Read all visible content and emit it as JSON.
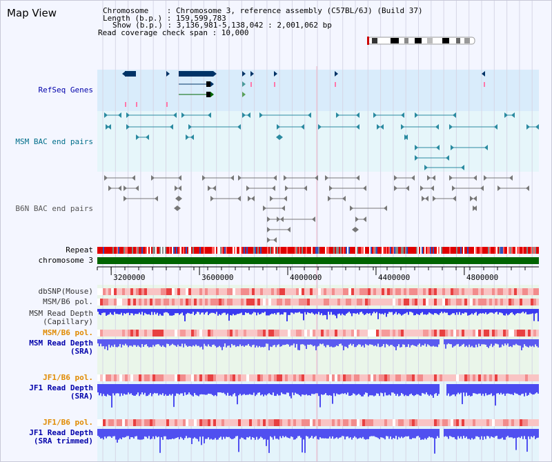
{
  "title": "Map View",
  "header": {
    "chromosome_line": "Chromosome    : Chromosome 3, reference assembly (C57BL/6J) (Build 37)",
    "length_line": "Length (b.p.) : 159,599,783",
    "show_line": "Show (b.p.) : 3,136,981-5,138,042 : 2,001,062 bp",
    "coverage_line": "Read coverage check span : 10,000"
  },
  "labels": {
    "refseq": "RefSeq Genes",
    "msm_bac": "MSM BAC end pairs",
    "b6n_bac": "B6N BAC end pairs",
    "repeat": "Repeat",
    "chromosome": "chromosome 3",
    "dbsnp": "dbSNP(Mouse)",
    "msm_pol": "MSM/B6 pol.",
    "msm_depth_cap": "MSM Read Depth\n(Capillary)",
    "msm_pol2": "MSM/B6 pol.",
    "msm_depth_sra": "MSM Read Depth\n(SRA)",
    "jf1_pol": "JF1/B6 pol.",
    "jf1_depth_sra": "JF1 Read Depth\n(SRA)",
    "jf1_pol2": "JF1/B6 pol.",
    "jf1_depth_trim": "JF1 Read Depth\n(SRA trimmed)"
  },
  "axis": {
    "start": 3136981,
    "end": 5138042,
    "ticks": [
      "3200000",
      "3600000",
      "4000000",
      "4400000",
      "4800000"
    ]
  },
  "colors": {
    "refseq_label": "#0000aa",
    "msm_label": "#006e8a",
    "b6n_label": "#555555",
    "orange_label": "#e08a00",
    "blue_label": "#0000aa",
    "chromosome_bar": "#006400",
    "depth_bar": "#4b4bf0",
    "refseq_band": "#d9ecfb",
    "bac_band": "#e6f6fa",
    "depth_band": "#eaf6ea"
  }
}
